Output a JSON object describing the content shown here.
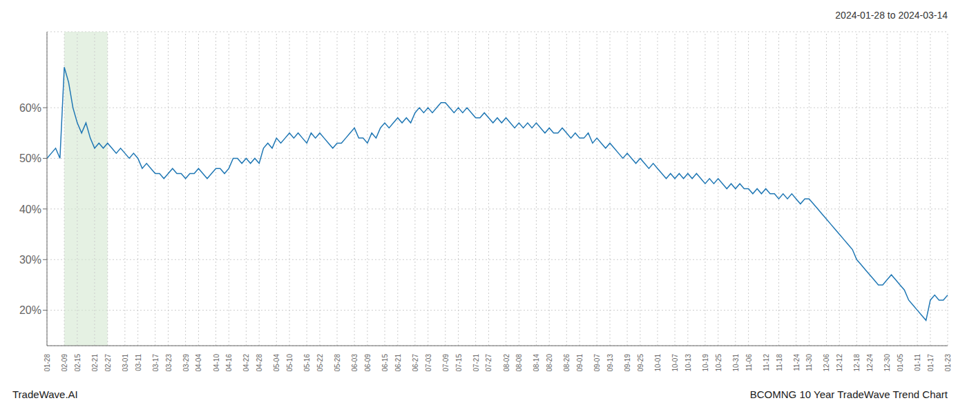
{
  "chart_data": {
    "type": "line",
    "title": "BCOMNG 10 Year TradeWave Trend Chart",
    "subtitle": "2024-01-28 to 2024-03-14",
    "annotations": [
      "TradeWave.AI"
    ],
    "color": "#1f77b4",
    "grid": true,
    "ylim": [
      13,
      75
    ],
    "yticks": [
      {
        "value": 20,
        "label": "20%"
      },
      {
        "value": 30,
        "label": "30%"
      },
      {
        "value": 40,
        "label": "40%"
      },
      {
        "value": 50,
        "label": "50%"
      },
      {
        "value": 60,
        "label": "60%"
      }
    ],
    "shaded_region": {
      "from": "02-09",
      "to": "02-27",
      "color": "#d4e8d0"
    },
    "categories": [
      "01-28",
      null,
      null,
      null,
      "02-09",
      null,
      null,
      "02-15",
      null,
      null,
      null,
      "02-21",
      null,
      null,
      "02-27",
      null,
      null,
      null,
      "03-01",
      null,
      null,
      "03-11",
      null,
      null,
      null,
      "03-17",
      null,
      null,
      "03-23",
      null,
      null,
      null,
      "03-29",
      null,
      null,
      "04-04",
      null,
      null,
      null,
      "04-10",
      null,
      null,
      "04-16",
      null,
      null,
      null,
      "04-22",
      null,
      null,
      "04-28",
      null,
      null,
      null,
      "05-04",
      null,
      null,
      "05-10",
      null,
      null,
      null,
      "05-16",
      null,
      null,
      "05-22",
      null,
      null,
      null,
      "05-28",
      null,
      null,
      null,
      "06-03",
      null,
      null,
      "06-09",
      null,
      null,
      null,
      "06-15",
      null,
      null,
      "06-21",
      null,
      null,
      null,
      "06-27",
      null,
      null,
      "07-03",
      null,
      null,
      null,
      "07-09",
      null,
      null,
      "07-15",
      null,
      null,
      null,
      "07-21",
      null,
      null,
      "07-27",
      null,
      null,
      null,
      "08-02",
      null,
      null,
      "08-08",
      null,
      null,
      null,
      "08-14",
      null,
      null,
      "08-20",
      null,
      null,
      null,
      "08-26",
      null,
      null,
      "09-01",
      null,
      null,
      null,
      "09-07",
      null,
      null,
      "09-13",
      null,
      null,
      null,
      "09-19",
      null,
      null,
      "09-25",
      null,
      null,
      null,
      "10-01",
      null,
      null,
      null,
      "10-07",
      null,
      null,
      "10-13",
      null,
      null,
      null,
      "10-19",
      null,
      null,
      "10-25",
      null,
      null,
      null,
      "10-31",
      null,
      null,
      "11-06",
      null,
      null,
      null,
      "11-12",
      null,
      null,
      "11-18",
      null,
      null,
      null,
      "11-24",
      null,
      null,
      "11-30",
      null,
      null,
      null,
      "12-06",
      null,
      null,
      "12-12",
      null,
      null,
      null,
      "12-18",
      null,
      null,
      "12-24",
      null,
      null,
      null,
      "12-30",
      null,
      null,
      "01-05",
      null,
      null,
      null,
      "01-11",
      null,
      null,
      "01-17",
      null,
      null,
      null,
      "01-23"
    ],
    "values": [
      50,
      51,
      52,
      50,
      68,
      65,
      60,
      57,
      55,
      57,
      54,
      52,
      53,
      52,
      53,
      52,
      51,
      52,
      51,
      50,
      51,
      50,
      48,
      49,
      48,
      47,
      47,
      46,
      47,
      48,
      47,
      47,
      46,
      47,
      47,
      48,
      47,
      46,
      47,
      48,
      48,
      47,
      48,
      50,
      50,
      49,
      50,
      49,
      50,
      49,
      52,
      53,
      52,
      54,
      53,
      54,
      55,
      54,
      55,
      54,
      53,
      55,
      54,
      55,
      54,
      53,
      52,
      53,
      53,
      54,
      55,
      56,
      54,
      54,
      53,
      55,
      54,
      56,
      57,
      56,
      57,
      58,
      57,
      58,
      57,
      59,
      60,
      59,
      60,
      59,
      60,
      61,
      61,
      60,
      59,
      60,
      59,
      60,
      59,
      58,
      58,
      59,
      58,
      57,
      58,
      57,
      58,
      57,
      56,
      57,
      56,
      57,
      56,
      57,
      56,
      55,
      56,
      55,
      55,
      56,
      55,
      54,
      55,
      54,
      54,
      55,
      53,
      54,
      53,
      52,
      53,
      52,
      51,
      50,
      51,
      50,
      49,
      50,
      49,
      48,
      49,
      48,
      47,
      46,
      47,
      46,
      47,
      46,
      47,
      46,
      47,
      46,
      45,
      46,
      45,
      46,
      45,
      44,
      45,
      44,
      45,
      44,
      44,
      43,
      44,
      43,
      44,
      43,
      43,
      42,
      43,
      42,
      43,
      42,
      41,
      42,
      42,
      41,
      40,
      39,
      38,
      37,
      36,
      35,
      34,
      33,
      32,
      30,
      29,
      28,
      27,
      26,
      25,
      25,
      26,
      27,
      26,
      25,
      24,
      22,
      21,
      20,
      19,
      18,
      22,
      23,
      22,
      22,
      23
    ]
  }
}
